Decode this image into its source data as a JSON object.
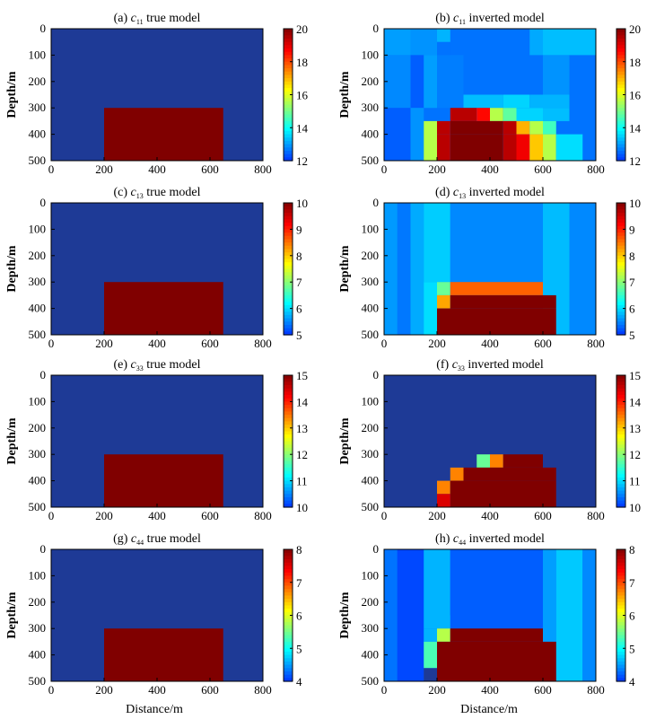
{
  "figure": {
    "xlabel": "Distance/m",
    "ylabel": "Depth/m"
  },
  "colors": {
    "background": "#1e3a96",
    "anomaly": "#800000",
    "axis": "#000000"
  },
  "chart_data": [
    {
      "type": "heatmap",
      "title_prefix": "(a) ",
      "title_symbol": "c",
      "title_sub": "11",
      "title_suffix": " true model",
      "x_range": [
        0,
        800
      ],
      "y_range": [
        0,
        500
      ],
      "y_reversed": true,
      "x_ticks": [
        0,
        200,
        400,
        600,
        800
      ],
      "y_ticks": [
        0,
        100,
        200,
        300,
        400,
        500
      ],
      "colorbar": {
        "min": 12,
        "max": 20,
        "ticks": [
          12,
          14,
          16,
          18,
          20
        ]
      },
      "background_value": 12,
      "cells": [
        {
          "x": [
            200,
            650
          ],
          "y": [
            300,
            500
          ],
          "v": 20
        }
      ]
    },
    {
      "type": "heatmap",
      "title_prefix": "(b) ",
      "title_symbol": "c",
      "title_sub": "11",
      "title_suffix": " inverted  model",
      "x_range": [
        0,
        800
      ],
      "y_range": [
        0,
        500
      ],
      "y_reversed": true,
      "x_ticks": [
        0,
        200,
        400,
        600,
        800
      ],
      "y_ticks": [
        0,
        100,
        200,
        300,
        400,
        500
      ],
      "colorbar": {
        "min": 12,
        "max": 20,
        "ticks": [
          12,
          14,
          16,
          18,
          20
        ],
        "tick_labels": [
          "12",
          "14",
          "16",
          "18",
          "20"
        ]
      },
      "background_value": 12.6,
      "cells": [
        {
          "x": [
            0,
            100
          ],
          "y": [
            0,
            100
          ],
          "v": 13.0
        },
        {
          "x": [
            100,
            200
          ],
          "y": [
            0,
            100
          ],
          "v": 12.9
        },
        {
          "x": [
            200,
            250
          ],
          "y": [
            0,
            100
          ],
          "v": 12.6
        },
        {
          "x": [
            200,
            250
          ],
          "y": [
            0,
            50
          ],
          "v": 13.2
        },
        {
          "x": [
            550,
            600
          ],
          "y": [
            0,
            100
          ],
          "v": 13.1
        },
        {
          "x": [
            600,
            800
          ],
          "y": [
            0,
            100
          ],
          "v": 13.3
        },
        {
          "x": [
            0,
            100
          ],
          "y": [
            100,
            300
          ],
          "v": 12.8
        },
        {
          "x": [
            100,
            150
          ],
          "y": [
            100,
            300
          ],
          "v": 12.4
        },
        {
          "x": [
            150,
            200
          ],
          "y": [
            100,
            300
          ],
          "v": 13.0
        },
        {
          "x": [
            200,
            300
          ],
          "y": [
            100,
            300
          ],
          "v": 12.7
        },
        {
          "x": [
            600,
            700
          ],
          "y": [
            100,
            300
          ],
          "v": 12.9
        },
        {
          "x": [
            0,
            100
          ],
          "y": [
            300,
            500
          ],
          "v": 12.4
        },
        {
          "x": [
            100,
            150
          ],
          "y": [
            300,
            500
          ],
          "v": 12.9
        },
        {
          "x": [
            300,
            450
          ],
          "y": [
            250,
            300
          ],
          "v": 13.3
        },
        {
          "x": [
            450,
            550
          ],
          "y": [
            250,
            300
          ],
          "v": 13.5
        },
        {
          "x": [
            550,
            700
          ],
          "y": [
            250,
            300
          ],
          "v": 13.2
        },
        {
          "x": [
            600,
            700
          ],
          "y": [
            300,
            350
          ],
          "v": 13.3
        },
        {
          "x": [
            250,
            350
          ],
          "y": [
            300,
            350
          ],
          "v": 19.4
        },
        {
          "x": [
            350,
            400
          ],
          "y": [
            300,
            350
          ],
          "v": 18.6
        },
        {
          "x": [
            400,
            450
          ],
          "y": [
            300,
            350
          ],
          "v": 15.6
        },
        {
          "x": [
            450,
            500
          ],
          "y": [
            300,
            350
          ],
          "v": 14.8
        },
        {
          "x": [
            500,
            600
          ],
          "y": [
            300,
            350
          ],
          "v": 13.5
        },
        {
          "x": [
            150,
            200
          ],
          "y": [
            350,
            500
          ],
          "v": 15.6
        },
        {
          "x": [
            200,
            250
          ],
          "y": [
            350,
            400
          ],
          "v": 19.4
        },
        {
          "x": [
            250,
            450
          ],
          "y": [
            350,
            400
          ],
          "v": 20.0
        },
        {
          "x": [
            450,
            500
          ],
          "y": [
            350,
            400
          ],
          "v": 19.4
        },
        {
          "x": [
            500,
            550
          ],
          "y": [
            350,
            400
          ],
          "v": 17.0
        },
        {
          "x": [
            550,
            600
          ],
          "y": [
            350,
            400
          ],
          "v": 15.6
        },
        {
          "x": [
            600,
            650
          ],
          "y": [
            350,
            400
          ],
          "v": 14.5
        },
        {
          "x": [
            200,
            250
          ],
          "y": [
            400,
            500
          ],
          "v": 19.4
        },
        {
          "x": [
            250,
            450
          ],
          "y": [
            400,
            500
          ],
          "v": 20.0
        },
        {
          "x": [
            450,
            500
          ],
          "y": [
            400,
            500
          ],
          "v": 19.4
        },
        {
          "x": [
            500,
            550
          ],
          "y": [
            400,
            500
          ],
          "v": 18.8
        },
        {
          "x": [
            550,
            600
          ],
          "y": [
            400,
            500
          ],
          "v": 16.8
        },
        {
          "x": [
            600,
            650
          ],
          "y": [
            400,
            500
          ],
          "v": 15.6
        },
        {
          "x": [
            650,
            750
          ],
          "y": [
            400,
            500
          ],
          "v": 13.6
        }
      ]
    },
    {
      "type": "heatmap",
      "title_prefix": "(c) ",
      "title_symbol": "c",
      "title_sub": "13",
      "title_suffix": " true model",
      "x_range": [
        0,
        800
      ],
      "y_range": [
        0,
        500
      ],
      "y_reversed": true,
      "x_ticks": [
        0,
        200,
        400,
        600,
        800
      ],
      "y_ticks": [
        0,
        100,
        200,
        300,
        400,
        500
      ],
      "colorbar": {
        "min": 5,
        "max": 10,
        "ticks": [
          5,
          6,
          7,
          8,
          9,
          10
        ]
      },
      "background_value": 5,
      "cells": [
        {
          "x": [
            200,
            650
          ],
          "y": [
            300,
            500
          ],
          "v": 10
        }
      ]
    },
    {
      "type": "heatmap",
      "title_prefix": "(d) ",
      "title_symbol": "c",
      "title_sub": "13",
      "title_suffix": " inverted model",
      "x_range": [
        0,
        800
      ],
      "y_range": [
        0,
        500
      ],
      "y_reversed": true,
      "x_ticks": [
        0,
        200,
        400,
        600,
        800
      ],
      "y_ticks": [
        0,
        100,
        200,
        300,
        400,
        500
      ],
      "colorbar": {
        "min": 5,
        "max": 10,
        "ticks": [
          5,
          6,
          7,
          8,
          9,
          10
        ]
      },
      "background_value": 5.5,
      "cells": [
        {
          "x": [
            0,
            50
          ],
          "y": [
            0,
            500
          ],
          "v": 5.6
        },
        {
          "x": [
            50,
            100
          ],
          "y": [
            0,
            500
          ],
          "v": 5.4
        },
        {
          "x": [
            100,
            150
          ],
          "y": [
            0,
            500
          ],
          "v": 5.7
        },
        {
          "x": [
            150,
            250
          ],
          "y": [
            0,
            300
          ],
          "v": 5.9
        },
        {
          "x": [
            250,
            600
          ],
          "y": [
            0,
            300
          ],
          "v": 5.5
        },
        {
          "x": [
            600,
            700
          ],
          "y": [
            0,
            500
          ],
          "v": 5.8
        },
        {
          "x": [
            700,
            800
          ],
          "y": [
            0,
            500
          ],
          "v": 5.5
        },
        {
          "x": [
            150,
            200
          ],
          "y": [
            300,
            500
          ],
          "v": 6.0
        },
        {
          "x": [
            200,
            250
          ],
          "y": [
            300,
            350
          ],
          "v": 6.8
        },
        {
          "x": [
            250,
            600
          ],
          "y": [
            300,
            350
          ],
          "v": 8.6
        },
        {
          "x": [
            200,
            250
          ],
          "y": [
            350,
            400
          ],
          "v": 8.2
        },
        {
          "x": [
            250,
            650
          ],
          "y": [
            350,
            400
          ],
          "v": 10
        },
        {
          "x": [
            200,
            650
          ],
          "y": [
            400,
            500
          ],
          "v": 10
        }
      ]
    },
    {
      "type": "heatmap",
      "title_prefix": "(e) ",
      "title_symbol": "c",
      "title_sub": "33",
      "title_suffix": " true model",
      "x_range": [
        0,
        800
      ],
      "y_range": [
        0,
        500
      ],
      "y_reversed": true,
      "x_ticks": [
        0,
        200,
        400,
        600,
        800
      ],
      "y_ticks": [
        0,
        100,
        200,
        300,
        400,
        500
      ],
      "colorbar": {
        "min": 10,
        "max": 15,
        "ticks": [
          10,
          11,
          12,
          13,
          14,
          15
        ]
      },
      "background_value": 10,
      "cells": [
        {
          "x": [
            200,
            650
          ],
          "y": [
            300,
            500
          ],
          "v": 15
        }
      ]
    },
    {
      "type": "heatmap",
      "title_prefix": "(f) ",
      "title_symbol": "c",
      "title_sub": "33",
      "title_suffix": " inverted model",
      "x_range": [
        0,
        800
      ],
      "y_range": [
        0,
        500
      ],
      "y_reversed": true,
      "x_ticks": [
        0,
        200,
        400,
        600,
        800
      ],
      "y_ticks": [
        0,
        100,
        200,
        300,
        400,
        500
      ],
      "colorbar": {
        "min": 10,
        "max": 15,
        "ticks": [
          10,
          11,
          12,
          13,
          14,
          15
        ]
      },
      "background_value": 10,
      "cells": [
        {
          "x": [
            350,
            400
          ],
          "y": [
            300,
            350
          ],
          "v": 11.8
        },
        {
          "x": [
            400,
            450
          ],
          "y": [
            300,
            350
          ],
          "v": 13.4
        },
        {
          "x": [
            450,
            600
          ],
          "y": [
            300,
            350
          ],
          "v": 15
        },
        {
          "x": [
            250,
            300
          ],
          "y": [
            350,
            400
          ],
          "v": 13.4
        },
        {
          "x": [
            300,
            650
          ],
          "y": [
            350,
            400
          ],
          "v": 15
        },
        {
          "x": [
            200,
            250
          ],
          "y": [
            400,
            450
          ],
          "v": 13.4
        },
        {
          "x": [
            250,
            650
          ],
          "y": [
            400,
            500
          ],
          "v": 15
        },
        {
          "x": [
            200,
            250
          ],
          "y": [
            450,
            500
          ],
          "v": 14.4
        }
      ]
    },
    {
      "type": "heatmap",
      "title_prefix": "(g) ",
      "title_symbol": "c",
      "title_sub": "44",
      "title_suffix": " true model",
      "x_range": [
        0,
        800
      ],
      "y_range": [
        0,
        500
      ],
      "y_reversed": true,
      "x_ticks": [
        0,
        200,
        400,
        600,
        800
      ],
      "y_ticks": [
        0,
        100,
        200,
        300,
        400,
        500
      ],
      "colorbar": {
        "min": 4,
        "max": 8,
        "ticks": [
          4,
          5,
          6,
          7,
          8
        ]
      },
      "background_value": 4,
      "cells": [
        {
          "x": [
            200,
            650
          ],
          "y": [
            300,
            500
          ],
          "v": 8
        }
      ]
    },
    {
      "type": "heatmap",
      "title_prefix": "(h) ",
      "title_symbol": "c",
      "title_sub": "44",
      "title_suffix": " inverted model",
      "x_range": [
        0,
        800
      ],
      "y_range": [
        0,
        500
      ],
      "y_reversed": true,
      "x_ticks": [
        0,
        200,
        400,
        600,
        800
      ],
      "y_ticks": [
        0,
        100,
        200,
        300,
        400,
        500
      ],
      "colorbar": {
        "min": 4,
        "max": 8,
        "ticks": [
          4,
          5,
          6,
          7,
          8
        ]
      },
      "background_value": 4.2,
      "cells": [
        {
          "x": [
            0,
            50
          ],
          "y": [
            0,
            500
          ],
          "v": 4.3
        },
        {
          "x": [
            50,
            150
          ],
          "y": [
            0,
            500
          ],
          "v": 4.1
        },
        {
          "x": [
            150,
            250
          ],
          "y": [
            0,
            300
          ],
          "v": 4.6
        },
        {
          "x": [
            250,
            600
          ],
          "y": [
            0,
            250
          ],
          "v": 4.2
        },
        {
          "x": [
            600,
            650
          ],
          "y": [
            0,
            500
          ],
          "v": 4.5
        },
        {
          "x": [
            650,
            750
          ],
          "y": [
            0,
            500
          ],
          "v": 4.7
        },
        {
          "x": [
            750,
            800
          ],
          "y": [
            0,
            500
          ],
          "v": 4.4
        },
        {
          "x": [
            150,
            200
          ],
          "y": [
            300,
            350
          ],
          "v": 4.6
        },
        {
          "x": [
            200,
            250
          ],
          "y": [
            300,
            350
          ],
          "v": 5.8
        },
        {
          "x": [
            150,
            200
          ],
          "y": [
            350,
            450
          ],
          "v": 5.3
        },
        {
          "x": [
            150,
            200
          ],
          "y": [
            450,
            500
          ],
          "v": 4.0
        },
        {
          "x": [
            250,
            600
          ],
          "y": [
            300,
            350
          ],
          "v": 8
        },
        {
          "x": [
            200,
            650
          ],
          "y": [
            350,
            500
          ],
          "v": 8
        }
      ]
    }
  ]
}
